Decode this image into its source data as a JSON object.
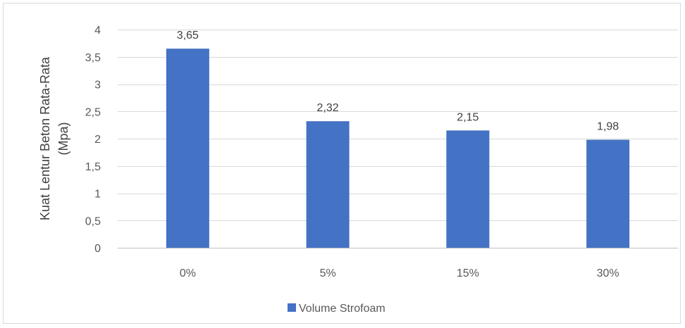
{
  "chart_data": {
    "type": "bar",
    "categories": [
      "0%",
      "5%",
      "15%",
      "30%"
    ],
    "series": [
      {
        "name": "Volume Strofoam",
        "values": [
          3.65,
          2.32,
          2.15,
          1.98
        ],
        "color": "#4472c4"
      }
    ],
    "data_labels": [
      "3,65",
      "2,32",
      "2,15",
      "1,98"
    ],
    "ylim": [
      0,
      4
    ],
    "yticks": [
      0,
      0.5,
      1,
      1.5,
      2,
      2.5,
      3,
      3.5,
      4
    ],
    "ytick_labels": [
      "0",
      "0,5",
      "1",
      "1,5",
      "2",
      "2,5",
      "3",
      "3,5",
      "4"
    ],
    "ylabel_lines": [
      "Kuat Lentur Beton Rata-Rata",
      "(Mpa)"
    ],
    "xlabel": "",
    "title": "",
    "grid": true,
    "legend_position": "bottom",
    "gridline_color": "#d9d9d9",
    "axis_color": "#bfbfbf"
  }
}
